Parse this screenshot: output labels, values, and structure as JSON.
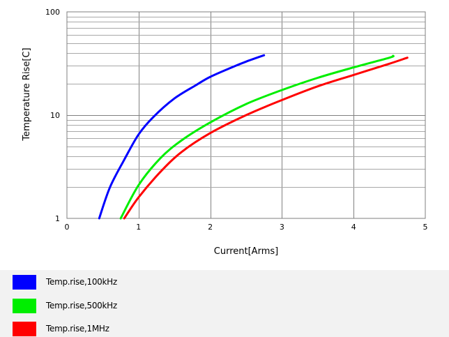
{
  "chart_data": {
    "type": "line",
    "title": "",
    "xlabel": "Current[Arms]",
    "ylabel": "Temperature Rise[C]",
    "xlim": [
      0,
      5
    ],
    "ylim": [
      1,
      100
    ],
    "yscale": "log",
    "x_ticks": [
      "0",
      "1",
      "2",
      "3",
      "4",
      "5"
    ],
    "y_ticks": [
      "1",
      "10",
      "100"
    ],
    "grid": true,
    "legend_position": "bottom",
    "series": [
      {
        "name": "Temp.rise,100kHz",
        "color": "#0000ff",
        "points": [
          [
            0.45,
            1.0
          ],
          [
            0.6,
            2.0
          ],
          [
            0.8,
            3.7
          ],
          [
            1.0,
            6.5
          ],
          [
            1.2,
            9.5
          ],
          [
            1.5,
            14.5
          ],
          [
            1.8,
            19.5
          ],
          [
            2.0,
            23.5
          ],
          [
            2.3,
            29.0
          ],
          [
            2.5,
            33.0
          ],
          [
            2.75,
            38.0
          ]
        ]
      },
      {
        "name": "Temp.rise,500kHz",
        "color": "#00ee00",
        "points": [
          [
            0.75,
            1.0
          ],
          [
            1.0,
            2.1
          ],
          [
            1.3,
            3.8
          ],
          [
            1.6,
            5.7
          ],
          [
            2.0,
            8.5
          ],
          [
            2.5,
            12.8
          ],
          [
            3.0,
            17.5
          ],
          [
            3.5,
            23.0
          ],
          [
            4.0,
            29.0
          ],
          [
            4.5,
            36.0
          ],
          [
            4.55,
            37.5
          ]
        ]
      },
      {
        "name": "Temp.rise,1MHz",
        "color": "#ff0000",
        "points": [
          [
            0.8,
            1.0
          ],
          [
            1.0,
            1.6
          ],
          [
            1.3,
            2.8
          ],
          [
            1.6,
            4.4
          ],
          [
            2.0,
            6.7
          ],
          [
            2.5,
            10.0
          ],
          [
            3.0,
            14.0
          ],
          [
            3.5,
            19.0
          ],
          [
            4.0,
            24.5
          ],
          [
            4.5,
            31.5
          ],
          [
            4.75,
            36.0
          ]
        ]
      }
    ]
  }
}
